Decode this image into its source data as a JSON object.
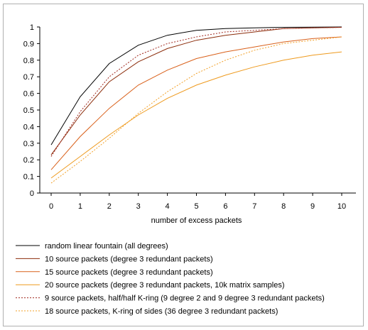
{
  "chart_data": {
    "type": "line",
    "title": "",
    "xlabel": "number of excess packets",
    "ylabel": "",
    "x": [
      0,
      1,
      2,
      3,
      4,
      5,
      6,
      7,
      8,
      9,
      10
    ],
    "xlim": [
      0,
      10
    ],
    "ylim": [
      0,
      1
    ],
    "x_ticks": [
      "0",
      "1",
      "2",
      "3",
      "4",
      "5",
      "6",
      "7",
      "8",
      "9",
      "10"
    ],
    "y_ticks": [
      "0",
      "0.1",
      "0.2",
      "0.3",
      "0.4",
      "0.5",
      "0.6",
      "0.7",
      "0.8",
      "0.9",
      "1"
    ],
    "grid": false,
    "legend_position": "bottom",
    "series": [
      {
        "name": "random linear fountain (all degrees)",
        "color": "#000000",
        "dash": "solid",
        "values": [
          0.29,
          0.58,
          0.78,
          0.89,
          0.95,
          0.98,
          0.99,
          0.995,
          0.998,
          0.999,
          1.0
        ]
      },
      {
        "name": "10 source packets (degree 3 redundant packets)",
        "color": "#8b2c0a",
        "dash": "solid",
        "values": [
          0.23,
          0.47,
          0.67,
          0.79,
          0.87,
          0.92,
          0.95,
          0.97,
          0.99,
          0.995,
          0.998
        ]
      },
      {
        "name": "15 source packets (degree 3 redundant packets)",
        "color": "#d9601a",
        "dash": "solid",
        "values": [
          0.14,
          0.34,
          0.51,
          0.65,
          0.74,
          0.81,
          0.85,
          0.88,
          0.91,
          0.93,
          0.94
        ]
      },
      {
        "name": "20 source packets (degree 3 redundant packets, 10k matrix samples)",
        "color": "#ee9a1e",
        "dash": "solid",
        "values": [
          0.09,
          0.22,
          0.35,
          0.47,
          0.57,
          0.65,
          0.71,
          0.76,
          0.8,
          0.83,
          0.85
        ]
      },
      {
        "name": "9 source packets, half/half K-ring (9 degree 2 and 9 degree 3 redundant packets)",
        "color": "#a0281e",
        "dash": "dotted",
        "values": [
          0.22,
          0.49,
          0.7,
          0.83,
          0.9,
          0.94,
          0.97,
          0.98,
          0.99,
          0.995,
          0.998
        ]
      },
      {
        "name": "18 source packets, K-ring of sides (36 degree 3 redundant packets)",
        "color": "#f2a027",
        "dash": "dotted",
        "values": [
          0.06,
          0.19,
          0.33,
          0.48,
          0.61,
          0.72,
          0.8,
          0.86,
          0.9,
          0.92,
          0.94
        ]
      }
    ]
  }
}
